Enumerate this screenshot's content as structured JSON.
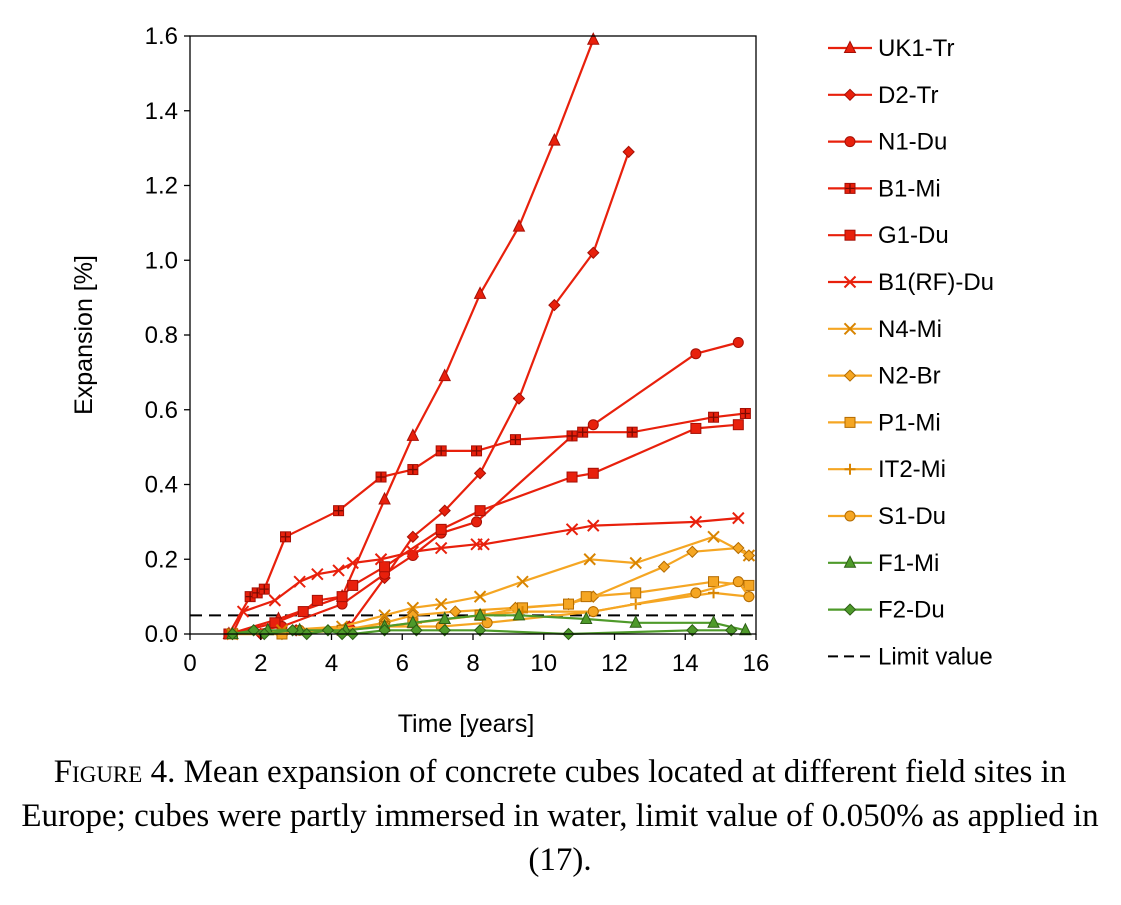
{
  "chart_data": {
    "type": "line",
    "xlabel": "Time [years]",
    "ylabel": "Expansion [%]",
    "xlim": [
      0,
      16
    ],
    "ylim": [
      0,
      1.6
    ],
    "xticks": [
      0,
      2,
      4,
      6,
      8,
      10,
      12,
      14,
      16
    ],
    "xtick_labels": [
      "0",
      "2",
      "4",
      "6",
      "8",
      "10",
      "12",
      "14",
      "16"
    ],
    "yticks": [
      0,
      0.2,
      0.4,
      0.6,
      0.8,
      1.0,
      1.2,
      1.4,
      1.6
    ],
    "ytick_labels": [
      "0.0",
      "0.2",
      "0.4",
      "0.6",
      "0.8",
      "1.0",
      "1.2",
      "1.4",
      "1.6"
    ],
    "grid": false,
    "legend_position": "right",
    "series": [
      {
        "name": "UK1-Tr",
        "color": "#e8200c",
        "marker": "triangle",
        "x": [
          1.1,
          2.5,
          4.3,
          5.5,
          6.3,
          7.2,
          8.2,
          9.3,
          10.3,
          11.4
        ],
        "y": [
          0.0,
          0.04,
          0.1,
          0.36,
          0.53,
          0.69,
          0.91,
          1.09,
          1.32,
          1.59
        ]
      },
      {
        "name": "D2-Tr",
        "color": "#e8200c",
        "marker": "diamond",
        "x": [
          2.0,
          3.0,
          4.5,
          5.5,
          6.3,
          7.2,
          8.2,
          9.3,
          10.3,
          11.4,
          12.4
        ],
        "y": [
          0.0,
          0.01,
          0.02,
          0.15,
          0.26,
          0.33,
          0.43,
          0.63,
          0.88,
          1.02,
          1.29
        ]
      },
      {
        "name": "N1-Du",
        "color": "#e8200c",
        "marker": "circle",
        "x": [
          1.2,
          2.6,
          4.3,
          5.5,
          6.3,
          7.1,
          8.1,
          10.8,
          11.4,
          14.3,
          15.5
        ],
        "y": [
          0.0,
          0.02,
          0.08,
          0.16,
          0.21,
          0.27,
          0.3,
          0.53,
          0.56,
          0.75,
          0.78
        ]
      },
      {
        "name": "B1-Mi",
        "color": "#e8200c",
        "marker": "plus-square",
        "x": [
          1.1,
          1.7,
          1.9,
          2.1,
          2.7,
          4.2,
          5.4,
          6.3,
          7.1,
          8.1,
          9.2,
          10.8,
          11.1,
          12.5,
          14.8,
          15.7
        ],
        "y": [
          0.0,
          0.1,
          0.11,
          0.12,
          0.26,
          0.33,
          0.42,
          0.44,
          0.49,
          0.49,
          0.52,
          0.53,
          0.54,
          0.54,
          0.58,
          0.59
        ]
      },
      {
        "name": "G1-Du",
        "color": "#e8200c",
        "marker": "square",
        "x": [
          1.2,
          2.4,
          3.2,
          3.6,
          4.3,
          4.6,
          5.5,
          7.1,
          8.2,
          10.8,
          11.4,
          14.3,
          15.5
        ],
        "y": [
          0.0,
          0.03,
          0.06,
          0.09,
          0.1,
          0.13,
          0.18,
          0.28,
          0.33,
          0.42,
          0.43,
          0.55,
          0.56
        ]
      },
      {
        "name": "B1(RF)-Du",
        "color": "#e8200c",
        "marker": "x",
        "x": [
          1.2,
          1.5,
          2.4,
          3.1,
          3.6,
          4.2,
          4.6,
          5.4,
          6.3,
          7.1,
          8.1,
          8.3,
          10.8,
          11.4,
          14.3,
          15.5
        ],
        "y": [
          0.0,
          0.06,
          0.09,
          0.14,
          0.16,
          0.17,
          0.19,
          0.2,
          0.22,
          0.23,
          0.24,
          0.24,
          0.28,
          0.29,
          0.3,
          0.31
        ]
      },
      {
        "name": "N4-Mi",
        "color": "#f5a623",
        "marker": "x",
        "x": [
          1.2,
          2.6,
          4.3,
          5.5,
          6.3,
          7.1,
          8.2,
          9.4,
          11.3,
          12.6,
          14.8,
          15.8
        ],
        "y": [
          0.0,
          0.01,
          0.02,
          0.05,
          0.07,
          0.08,
          0.1,
          0.14,
          0.2,
          0.19,
          0.26,
          0.21
        ]
      },
      {
        "name": "N2-Br",
        "color": "#f5a623",
        "marker": "diamond",
        "x": [
          1.2,
          2.6,
          4.3,
          5.5,
          6.3,
          7.5,
          9.2,
          10.7,
          11.4,
          13.4,
          14.2,
          15.5,
          15.8
        ],
        "y": [
          0.0,
          0.0,
          0.01,
          0.03,
          0.05,
          0.06,
          0.07,
          0.08,
          0.1,
          0.18,
          0.22,
          0.23,
          0.21
        ]
      },
      {
        "name": "P1-Mi",
        "color": "#f5a623",
        "marker": "square",
        "x": [
          1.2,
          2.6,
          4.3,
          5.5,
          6.3,
          8.2,
          9.4,
          10.7,
          11.2,
          12.6,
          14.8,
          15.8
        ],
        "y": [
          0.0,
          0.0,
          0.01,
          0.02,
          0.03,
          0.05,
          0.07,
          0.08,
          0.1,
          0.11,
          0.14,
          0.13
        ]
      },
      {
        "name": "IT2-Mi",
        "color": "#f5a623",
        "marker": "plus",
        "x": [
          1.2,
          3.1,
          5.5,
          6.4,
          8.2,
          9.4,
          11.4,
          12.6,
          14.8,
          15.8
        ],
        "y": [
          0.0,
          0.01,
          0.02,
          0.03,
          0.05,
          0.06,
          0.06,
          0.08,
          0.11,
          0.1
        ]
      },
      {
        "name": "S1-Du",
        "color": "#f5a623",
        "marker": "circle",
        "x": [
          1.2,
          3.1,
          5.5,
          7.1,
          8.4,
          11.4,
          14.3,
          15.5,
          15.8
        ],
        "y": [
          0.0,
          0.01,
          0.02,
          0.02,
          0.03,
          0.06,
          0.11,
          0.14,
          0.1
        ]
      },
      {
        "name": "F1-Mi",
        "color": "#4e9a2a",
        "marker": "triangle",
        "x": [
          1.2,
          2.2,
          3.1,
          4.4,
          5.5,
          6.3,
          7.2,
          8.2,
          9.3,
          11.2,
          12.6,
          14.8,
          15.7
        ],
        "y": [
          0.0,
          0.01,
          0.01,
          0.01,
          0.02,
          0.03,
          0.04,
          0.05,
          0.05,
          0.04,
          0.03,
          0.03,
          0.01
        ]
      },
      {
        "name": "F2-Du",
        "color": "#4e9a2a",
        "marker": "diamond",
        "x": [
          1.2,
          1.8,
          2.1,
          2.9,
          3.3,
          3.9,
          4.3,
          4.6,
          5.5,
          6.4,
          7.2,
          8.2,
          10.7,
          14.2,
          15.3
        ],
        "y": [
          0.0,
          0.01,
          0.0,
          0.01,
          0.0,
          0.01,
          0.0,
          0.0,
          0.01,
          0.01,
          0.01,
          0.01,
          0.0,
          0.01,
          0.01
        ]
      }
    ],
    "reference_lines": [
      {
        "name": "Limit value",
        "y": 0.05,
        "style": "dashed",
        "color": "#000000"
      }
    ]
  },
  "caption": {
    "label": "Figure 4.",
    "text": " Mean expansion of concrete cubes located at different field sites in Europe; cubes were partly immersed in water, limit value of 0.050% as applied in (17)."
  }
}
